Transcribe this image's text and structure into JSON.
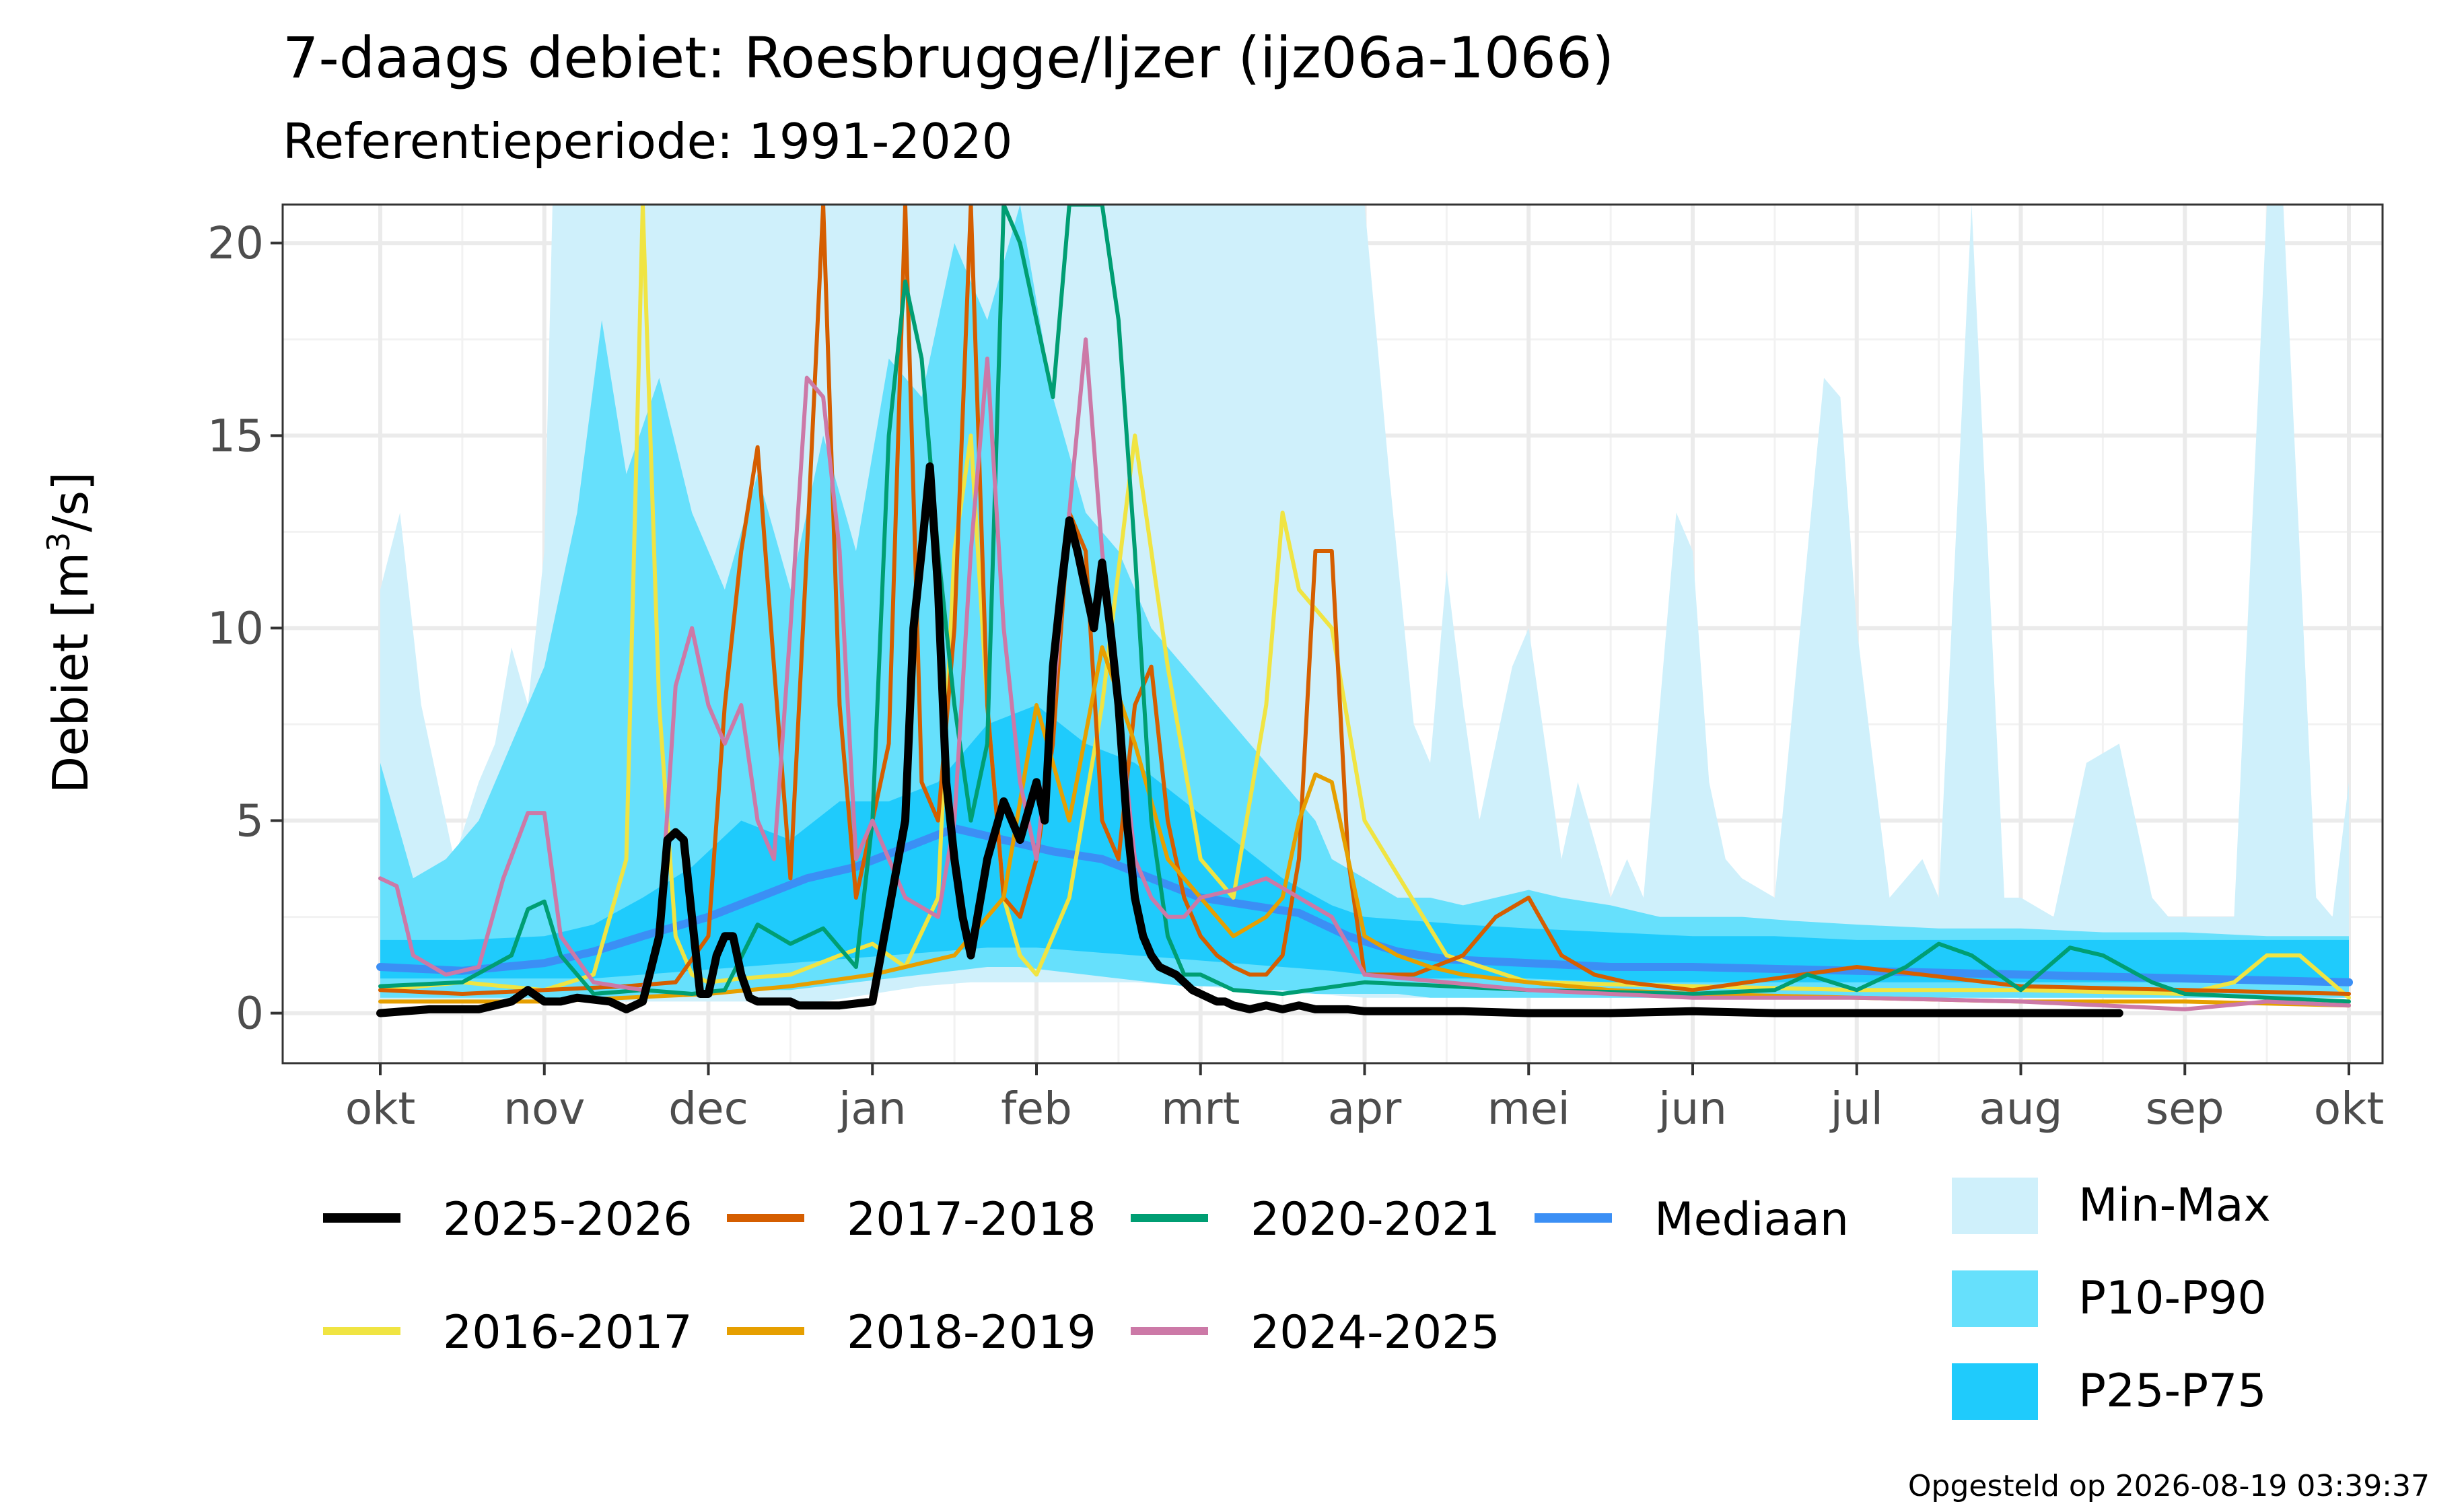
{
  "chart_data": {
    "type": "line",
    "title": "7-daags debiet: Roesbrugge/Ijzer (ijz06a-1066)",
    "subtitle": "Referentieperiode: 1991-2020",
    "ylabel_main": "Debiet [m",
    "ylabel_sup": "3",
    "ylabel_tail": "/s]",
    "footer": "Opgesteld op 2026-08-19 03:39:37",
    "ylim": [
      -1.3,
      21
    ],
    "y_ticks": [
      "0",
      "5",
      "10",
      "15",
      "20"
    ],
    "x_ticks": [
      "okt",
      "nov",
      "dec",
      "jan",
      "feb",
      "mrt",
      "apr",
      "mei",
      "jun",
      "jul",
      "aug",
      "sep",
      "okt"
    ],
    "x_unit": "month offset from 1 October (0 = okt, 12 = okt)",
    "grid": true,
    "legend_position": "bottom",
    "bands": [
      {
        "name": "Min-Max",
        "color": "#cff0fb",
        "x": [
          0,
          0.12,
          0.25,
          0.45,
          0.6,
          0.7,
          0.8,
          0.9,
          1.0,
          1.05,
          1.2,
          1.4,
          1.55,
          1.7,
          2.0,
          2.3,
          2.5,
          2.7,
          3.0,
          3.3,
          3.6,
          4.0,
          4.3,
          4.6,
          5.0,
          5.3,
          5.5,
          5.7,
          6.0,
          6.15,
          6.3,
          6.4,
          6.5,
          6.6,
          6.7,
          6.8,
          6.9,
          7.0,
          7.2,
          7.3,
          7.5,
          7.6,
          7.7,
          7.9,
          8.0,
          8.1,
          8.2,
          8.3,
          8.5,
          8.7,
          8.8,
          8.9,
          9.0,
          9.2,
          9.4,
          9.5,
          9.7,
          9.9,
          10.0,
          10.2,
          10.4,
          10.6,
          10.8,
          10.9,
          11.0,
          11.3,
          11.5,
          11.6,
          11.8,
          11.9,
          12.0
        ],
        "lo": [
          0.3,
          0.3,
          0.3,
          0.3,
          0.3,
          0.3,
          0.3,
          0.3,
          0.3,
          0.3,
          0.3,
          0.3,
          0.3,
          0.3,
          0.3,
          0.3,
          0.3,
          0.3,
          0.5,
          0.7,
          0.8,
          0.8,
          0.8,
          0.8,
          0.7,
          0.6,
          0.5,
          0.5,
          0.4,
          0.4,
          0.4,
          0.4,
          0.4,
          0.4,
          0.4,
          0.4,
          0.4,
          0.4,
          0.4,
          0.4,
          0.4,
          0.4,
          0.4,
          0.4,
          0.4,
          0.4,
          0.4,
          0.4,
          0.4,
          0.4,
          0.4,
          0.4,
          0.4,
          0.4,
          0.4,
          0.4,
          0.4,
          0.4,
          0.4,
          0.4,
          0.4,
          0.4,
          0.4,
          0.4,
          0.4,
          0.4,
          0.4,
          0.4,
          0.4,
          0.4,
          0.4
        ],
        "hi": [
          11,
          13,
          8,
          4,
          6,
          7,
          9.5,
          8,
          12,
          21,
          21,
          21,
          21,
          21,
          21,
          21,
          21,
          21,
          21,
          21,
          21,
          21,
          21,
          21,
          21,
          21,
          21,
          21,
          21,
          14,
          7.5,
          6.5,
          11.5,
          8,
          5,
          7,
          9,
          10,
          4,
          6,
          3,
          4,
          3,
          13,
          12,
          6,
          4,
          3.5,
          3,
          12,
          16.5,
          16,
          10,
          3,
          4,
          3,
          21,
          3,
          3,
          2.5,
          6.5,
          7,
          3,
          2.5,
          2.5,
          2.5,
          21,
          21,
          3,
          2.5,
          6
        ]
      },
      {
        "name": "P10-P90",
        "color": "#66e0fc",
        "x": [
          0,
          0.2,
          0.4,
          0.6,
          0.8,
          1.0,
          1.2,
          1.35,
          1.5,
          1.7,
          1.9,
          2.1,
          2.3,
          2.5,
          2.7,
          2.9,
          3.1,
          3.3,
          3.5,
          3.7,
          3.9,
          4.1,
          4.3,
          4.5,
          4.7,
          4.9,
          5.1,
          5.3,
          5.5,
          5.7,
          5.8,
          6.0,
          6.2,
          6.4,
          6.6,
          6.8,
          7.0,
          7.2,
          7.5,
          7.8,
          8.0,
          8.3,
          8.6,
          9.0,
          9.5,
          10.0,
          10.5,
          11.0,
          11.5,
          12.0
        ],
        "lo": [
          0.4,
          0.4,
          0.4,
          0.4,
          0.4,
          0.4,
          0.4,
          0.4,
          0.4,
          0.4,
          0.5,
          0.5,
          0.6,
          0.6,
          0.7,
          0.8,
          0.9,
          1.0,
          1.1,
          1.2,
          1.2,
          1.1,
          1.0,
          0.9,
          0.8,
          0.7,
          0.7,
          0.6,
          0.6,
          0.5,
          0.5,
          0.5,
          0.5,
          0.4,
          0.4,
          0.4,
          0.4,
          0.4,
          0.4,
          0.4,
          0.4,
          0.4,
          0.4,
          0.4,
          0.4,
          0.4,
          0.4,
          0.4,
          0.4,
          0.4
        ],
        "hi": [
          6.5,
          3.5,
          4,
          5,
          7,
          9,
          13,
          18,
          14,
          16.5,
          13,
          11,
          14,
          11,
          15,
          12,
          17,
          16,
          20,
          18,
          21,
          16,
          13,
          12,
          10,
          9,
          8,
          7,
          6,
          5,
          4,
          3.5,
          3,
          3,
          2.8,
          3,
          3.2,
          3,
          2.8,
          2.5,
          2.5,
          2.5,
          2.4,
          2.3,
          2.2,
          2.2,
          2.1,
          2.1,
          2.0,
          2.0
        ]
      },
      {
        "name": "P25-P75",
        "color": "#1fcbfc",
        "x": [
          0,
          0.5,
          1.0,
          1.3,
          1.6,
          1.9,
          2.2,
          2.5,
          2.8,
          3.1,
          3.4,
          3.7,
          4.0,
          4.3,
          4.6,
          4.9,
          5.2,
          5.5,
          5.8,
          6.0,
          6.3,
          6.6,
          7.0,
          7.5,
          8.0,
          8.5,
          9.0,
          9.5,
          10.0,
          10.5,
          11.0,
          11.5,
          12.0
        ],
        "lo": [
          0.9,
          0.9,
          0.9,
          0.9,
          1.0,
          1.1,
          1.2,
          1.3,
          1.4,
          1.5,
          1.6,
          1.7,
          1.7,
          1.6,
          1.5,
          1.4,
          1.3,
          1.2,
          1.1,
          1.0,
          0.9,
          0.9,
          0.9,
          0.8,
          0.8,
          0.8,
          0.8,
          0.8,
          0.8,
          0.8,
          0.8,
          0.8,
          0.8
        ],
        "hi": [
          1.9,
          1.9,
          2.0,
          2.3,
          3.0,
          3.8,
          5.0,
          4.5,
          5.5,
          5.5,
          6.0,
          7.5,
          8.0,
          7.0,
          6.5,
          5.5,
          4.5,
          3.5,
          2.8,
          2.5,
          2.4,
          2.3,
          2.2,
          2.1,
          2.0,
          2.0,
          1.9,
          1.9,
          1.9,
          1.9,
          1.9,
          1.9,
          1.9
        ]
      }
    ],
    "series": [
      {
        "name": "Mediaan",
        "color": "#3b8ff5",
        "width": 12,
        "x": [
          0,
          0.5,
          1.0,
          1.3,
          1.6,
          2.0,
          2.3,
          2.6,
          2.9,
          3.2,
          3.5,
          3.8,
          4.1,
          4.4,
          4.7,
          5.0,
          5.3,
          5.6,
          5.9,
          6.2,
          6.5,
          7.0,
          7.5,
          8.0,
          9.0,
          10.0,
          11.0,
          12.0
        ],
        "y": [
          1.2,
          1.1,
          1.3,
          1.6,
          2.0,
          2.5,
          3.0,
          3.5,
          3.8,
          4.3,
          4.8,
          4.5,
          4.2,
          4.0,
          3.5,
          3.0,
          2.8,
          2.6,
          2.0,
          1.6,
          1.4,
          1.3,
          1.2,
          1.2,
          1.1,
          1.0,
          0.9,
          0.8
        ]
      },
      {
        "name": "2016-2017",
        "color": "#f0e442",
        "width": 6,
        "x": [
          0,
          0.5,
          1.0,
          1.3,
          1.5,
          1.6,
          1.7,
          1.8,
          1.9,
          2.0,
          2.2,
          2.5,
          2.8,
          3.0,
          3.2,
          3.4,
          3.5,
          3.6,
          3.7,
          3.8,
          3.9,
          4.0,
          4.2,
          4.4,
          4.6,
          4.8,
          5.0,
          5.2,
          5.4,
          5.5,
          5.6,
          5.8,
          6.0,
          6.5,
          7.0,
          8.0,
          9.0,
          10.0,
          11.0,
          11.3,
          11.5,
          11.7,
          12.0
        ],
        "y": [
          0.6,
          0.8,
          0.6,
          1.0,
          4,
          21,
          8,
          2,
          1,
          0.8,
          0.9,
          1.0,
          1.5,
          1.8,
          1.2,
          3,
          12,
          15,
          8,
          3,
          1.5,
          1.0,
          3.0,
          8,
          15,
          9,
          4,
          3,
          8,
          13,
          11,
          10,
          5,
          1.5,
          0.8,
          0.7,
          0.6,
          0.6,
          0.5,
          0.8,
          1.5,
          1.5,
          0.4
        ]
      },
      {
        "name": "2017-2018",
        "color": "#d55e00",
        "width": 6,
        "x": [
          0,
          0.5,
          1.0,
          1.5,
          1.8,
          2.0,
          2.1,
          2.2,
          2.3,
          2.4,
          2.5,
          2.6,
          2.7,
          2.8,
          2.9,
          3.0,
          3.1,
          3.2,
          3.3,
          3.4,
          3.5,
          3.6,
          3.7,
          3.8,
          3.9,
          4.0,
          4.1,
          4.2,
          4.3,
          4.4,
          4.5,
          4.6,
          4.7,
          4.8,
          4.9,
          5.0,
          5.1,
          5.2,
          5.3,
          5.4,
          5.5,
          5.6,
          5.7,
          5.8,
          5.9,
          6.0,
          6.3,
          6.6,
          6.8,
          7.0,
          7.2,
          7.4,
          7.6,
          8.0,
          9.0,
          10.0,
          11.0,
          12.0
        ],
        "y": [
          0.6,
          0.5,
          0.6,
          0.7,
          0.8,
          2,
          8,
          12,
          14.7,
          9,
          3.5,
          12,
          21,
          8,
          3,
          5,
          7,
          21,
          6,
          5,
          10,
          21,
          8,
          3,
          2.5,
          4,
          7,
          13,
          12,
          5,
          4,
          8,
          9,
          5,
          3,
          2,
          1.5,
          1.2,
          1.0,
          1.0,
          1.5,
          4,
          12,
          12,
          4,
          1.0,
          1.0,
          1.5,
          2.5,
          3,
          1.5,
          1.0,
          0.8,
          0.6,
          1.2,
          0.7,
          0.6,
          0.5
        ]
      },
      {
        "name": "2018-2019",
        "color": "#e69f00",
        "width": 6,
        "x": [
          0,
          1.0,
          2.0,
          2.5,
          3.0,
          3.5,
          3.8,
          4.0,
          4.2,
          4.4,
          4.6,
          4.8,
          5.0,
          5.2,
          5.4,
          5.5,
          5.6,
          5.7,
          5.8,
          6.0,
          6.2,
          6.4,
          6.6,
          7.0,
          7.5,
          8.0,
          9.0,
          10.0,
          11.0,
          12.0
        ],
        "y": [
          0.3,
          0.3,
          0.5,
          0.7,
          1.0,
          1.5,
          3,
          8,
          5,
          9.5,
          7,
          4,
          3,
          2,
          2.5,
          3,
          5,
          6.2,
          6,
          2,
          1.5,
          1.2,
          1.0,
          0.8,
          0.6,
          0.5,
          0.4,
          0.3,
          0.3,
          0.2
        ]
      },
      {
        "name": "2020-2021",
        "color": "#009e73",
        "width": 6,
        "x": [
          0,
          0.5,
          0.8,
          0.9,
          1.0,
          1.1,
          1.3,
          1.6,
          1.9,
          2.1,
          2.3,
          2.5,
          2.7,
          2.9,
          3.0,
          3.1,
          3.2,
          3.3,
          3.4,
          3.5,
          3.6,
          3.7,
          3.8,
          3.9,
          4.0,
          4.1,
          4.2,
          4.3,
          4.4,
          4.5,
          4.6,
          4.7,
          4.8,
          4.9,
          5.0,
          5.2,
          5.5,
          6.0,
          7.0,
          8.0,
          8.5,
          8.7,
          9.0,
          9.3,
          9.5,
          9.7,
          10.0,
          10.3,
          10.5,
          10.8,
          11.0,
          11.5,
          12.0
        ],
        "y": [
          0.7,
          0.8,
          1.5,
          2.7,
          2.9,
          1.5,
          0.5,
          0.6,
          0.5,
          0.6,
          2.3,
          1.8,
          2.2,
          1.2,
          5,
          15,
          19,
          17,
          12,
          8,
          5,
          7,
          21,
          20,
          18,
          16,
          21,
          21,
          21,
          18,
          12,
          5,
          2,
          1.0,
          1.0,
          0.6,
          0.5,
          0.8,
          0.6,
          0.5,
          0.6,
          1.0,
          0.6,
          1.2,
          1.8,
          1.5,
          0.6,
          1.7,
          1.5,
          0.8,
          0.5,
          0.4,
          0.3
        ]
      },
      {
        "name": "2024-2025",
        "color": "#cc79a7",
        "width": 6,
        "x": [
          0,
          0.1,
          0.2,
          0.4,
          0.6,
          0.75,
          0.9,
          1.0,
          1.1,
          1.3,
          1.6,
          1.7,
          1.8,
          1.9,
          2.0,
          2.1,
          2.2,
          2.3,
          2.4,
          2.5,
          2.6,
          2.7,
          2.8,
          2.9,
          3.0,
          3.2,
          3.4,
          3.5,
          3.6,
          3.7,
          3.8,
          3.9,
          4.0,
          4.1,
          4.2,
          4.3,
          4.4,
          4.5,
          4.6,
          4.7,
          4.8,
          4.9,
          5.0,
          5.2,
          5.4,
          5.6,
          5.8,
          6.0,
          7.0,
          8.0,
          9.0,
          10.0,
          11.0,
          11.5,
          12.0
        ],
        "y": [
          3.5,
          3.3,
          1.5,
          1.0,
          1.2,
          3.5,
          5.2,
          5.2,
          2.0,
          0.8,
          0.6,
          2,
          8.5,
          10,
          8,
          7,
          8,
          5,
          4,
          10,
          16.5,
          16,
          12,
          4,
          5,
          3,
          2.5,
          5,
          12,
          17,
          10,
          6,
          4,
          8,
          13,
          17.5,
          12,
          8,
          4,
          3,
          2.5,
          2.5,
          3,
          3.2,
          3.5,
          3.0,
          2.5,
          1.0,
          0.6,
          0.4,
          0.4,
          0.3,
          0.1,
          0.3,
          0.2
        ]
      },
      {
        "name": "2025-2026",
        "color": "#000000",
        "width": 12,
        "x": [
          0,
          0.3,
          0.6,
          0.8,
          0.9,
          1.0,
          1.1,
          1.2,
          1.4,
          1.5,
          1.6,
          1.7,
          1.75,
          1.8,
          1.85,
          1.9,
          1.95,
          2.0,
          2.05,
          2.1,
          2.15,
          2.2,
          2.25,
          2.3,
          2.35,
          2.4,
          2.45,
          2.5,
          2.55,
          2.6,
          2.7,
          2.8,
          3.0,
          3.2,
          3.25,
          3.3,
          3.35,
          3.4,
          3.45,
          3.5,
          3.55,
          3.6,
          3.7,
          3.8,
          3.9,
          4.0,
          4.05,
          4.1,
          4.15,
          4.2,
          4.25,
          4.3,
          4.35,
          4.4,
          4.45,
          4.5,
          4.55,
          4.6,
          4.65,
          4.7,
          4.75,
          4.8,
          4.85,
          4.9,
          4.95,
          5.0,
          5.05,
          5.1,
          5.15,
          5.2,
          5.3,
          5.4,
          5.5,
          5.6,
          5.7,
          5.8,
          5.9,
          6.0,
          6.3,
          6.6,
          7.0,
          7.5,
          8.0,
          8.5,
          9.0,
          9.5,
          10.0,
          10.5,
          10.6
        ],
        "y": [
          0.0,
          0.1,
          0.1,
          0.3,
          0.6,
          0.3,
          0.3,
          0.4,
          0.3,
          0.1,
          0.3,
          2.0,
          4.5,
          4.7,
          4.5,
          2.5,
          0.5,
          0.5,
          1.5,
          2.0,
          2.0,
          1.0,
          0.4,
          0.3,
          0.3,
          0.3,
          0.3,
          0.3,
          0.2,
          0.2,
          0.2,
          0.2,
          0.3,
          5,
          10,
          12,
          14.2,
          11,
          6,
          4,
          2.5,
          1.5,
          4,
          5.5,
          4.5,
          6,
          5,
          9,
          11,
          12.8,
          12,
          11,
          10,
          11.7,
          10,
          8,
          5,
          3,
          2.0,
          1.5,
          1.2,
          1.1,
          1.0,
          0.8,
          0.6,
          0.5,
          0.4,
          0.3,
          0.3,
          0.2,
          0.1,
          0.2,
          0.1,
          0.2,
          0.1,
          0.1,
          0.1,
          0.05,
          0.05,
          0.05,
          0.0,
          0.0,
          0.05,
          0.0,
          0.0,
          0.0,
          0.0,
          0.0,
          0.0
        ]
      }
    ],
    "legend_lines": [
      "2025-2026",
      "2017-2018",
      "2020-2021",
      "Mediaan",
      "2016-2017",
      "2018-2019",
      "2024-2025"
    ],
    "legend_bands": [
      "Min-Max",
      "P10-P90",
      "P25-P75"
    ]
  }
}
